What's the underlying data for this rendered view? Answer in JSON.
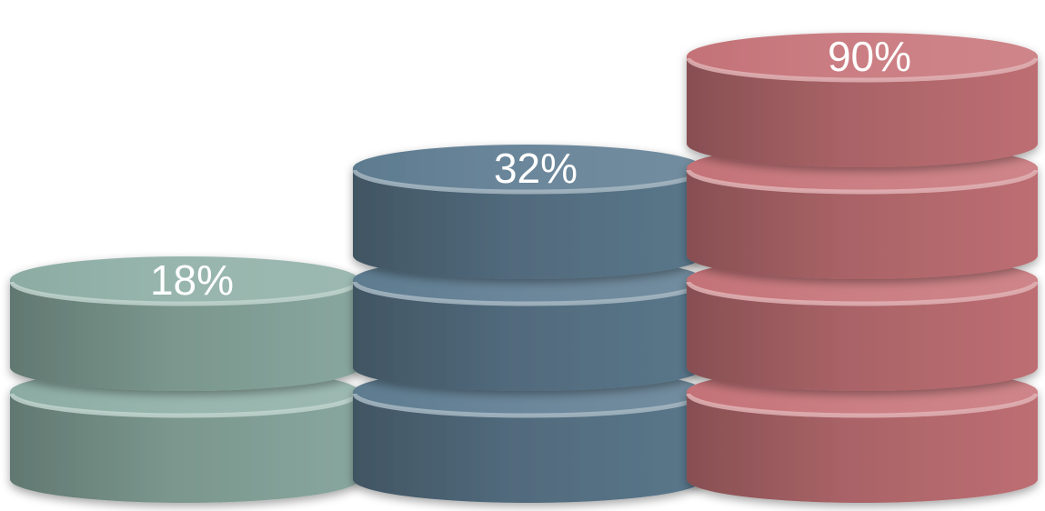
{
  "chart_data": {
    "type": "bar",
    "style": "stacked-3d-discs",
    "categories": [
      "",
      "",
      ""
    ],
    "values": [
      18,
      32,
      90
    ],
    "data_labels": [
      "18%",
      "32%",
      "90%"
    ],
    "disc_counts": [
      2,
      3,
      4
    ],
    "unit": "%",
    "title": "",
    "xlabel": "",
    "ylabel": "",
    "grid": false,
    "legend": "none",
    "colors": [
      "#8fb0a6",
      "#5f7d92",
      "#c77479"
    ]
  }
}
